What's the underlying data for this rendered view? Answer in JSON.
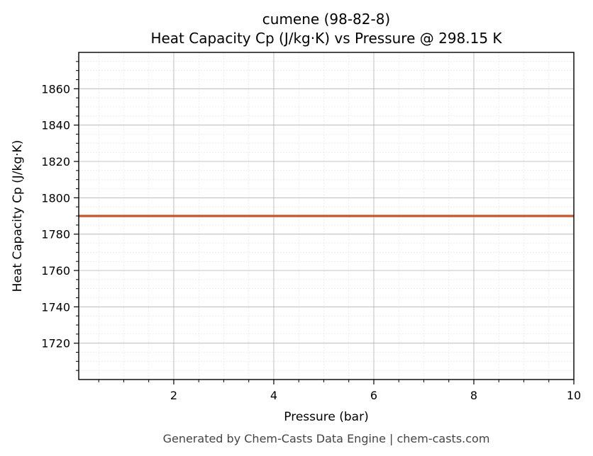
{
  "chart_data": {
    "type": "line",
    "title": "cumene (98-82-8)",
    "subtitle": "Heat Capacity Cp (J/kg·K) vs Pressure @ 298.15 K",
    "xlabel": "Pressure (bar)",
    "ylabel": "Heat Capacity Cp (J/kg·K)",
    "xlim": [
      0.1,
      10
    ],
    "ylim": [
      1700,
      1880
    ],
    "x_ticks": [
      2,
      4,
      6,
      8,
      10
    ],
    "y_ticks": [
      1720,
      1740,
      1760,
      1780,
      1800,
      1820,
      1840,
      1860
    ],
    "grid": true,
    "minor_grid": true,
    "series": [
      {
        "x": [
          0.1,
          10
        ],
        "y": [
          1790,
          1790
        ],
        "color": "#c8542c"
      }
    ]
  },
  "footer": "Generated by Chem-Casts Data Engine | chem-casts.com"
}
